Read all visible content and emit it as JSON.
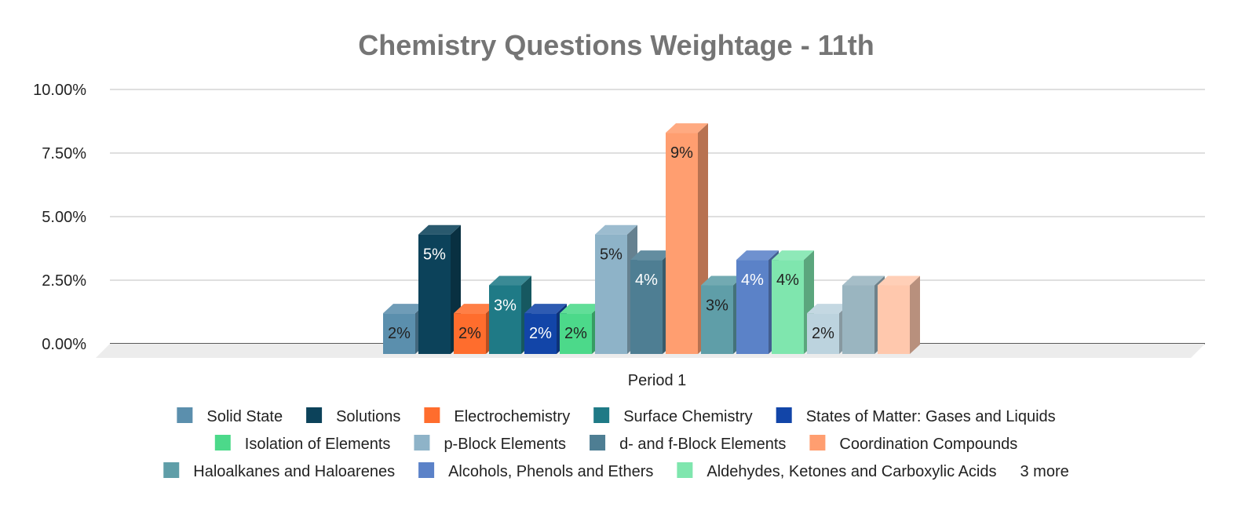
{
  "chart_data": {
    "type": "bar",
    "title": "Chemistry Questions Weightage - 11th",
    "categories": [
      "Period 1"
    ],
    "ylim": [
      0,
      10
    ],
    "yticks": [
      "0.00%",
      "2.50%",
      "5.00%",
      "7.50%",
      "10.00%"
    ],
    "ytick_values": [
      0,
      2.5,
      5,
      7.5,
      10
    ],
    "grid": true,
    "legend_position": "bottom",
    "legend_more": "3 more",
    "series": [
      {
        "name": "Solid State",
        "value": 1.6,
        "label": "2%",
        "color": "#5b8fad",
        "label_color": "#222222"
      },
      {
        "name": "Solutions",
        "value": 4.7,
        "label": "5%",
        "color": "#0c425a",
        "label_color": "#ffffff"
      },
      {
        "name": "Electrochemistry",
        "value": 1.6,
        "label": "2%",
        "color": "#ff6d2d",
        "label_color": "#222222"
      },
      {
        "name": "Surface Chemistry",
        "value": 2.7,
        "label": "3%",
        "color": "#1f7a86",
        "label_color": "#ffffff"
      },
      {
        "name": "States of Matter: Gases and Liquids",
        "value": 1.6,
        "label": "2%",
        "color": "#1245a8",
        "label_color": "#ffffff"
      },
      {
        "name": "Isolation of Elements",
        "value": 1.6,
        "label": "2%",
        "color": "#4cd98a",
        "label_color": "#222222"
      },
      {
        "name": "p-Block Elements",
        "value": 4.7,
        "label": "5%",
        "color": "#8eb3c8",
        "label_color": "#222222"
      },
      {
        "name": "d- and f-Block Elements",
        "value": 3.7,
        "label": "4%",
        "color": "#4e7e93",
        "label_color": "#ffffff"
      },
      {
        "name": "Coordination Compounds",
        "value": 8.7,
        "label": "9%",
        "color": "#ff9e70",
        "label_color": "#222222"
      },
      {
        "name": "Haloalkanes and Haloarenes",
        "value": 2.7,
        "label": "3%",
        "color": "#5f9ea8",
        "label_color": "#222222"
      },
      {
        "name": "Alcohols, Phenols and Ethers",
        "value": 3.7,
        "label": "4%",
        "color": "#5b82c8",
        "label_color": "#ffffff"
      },
      {
        "name": "Aldehydes, Ketones and Carboxylic Acids",
        "value": 3.7,
        "label": "4%",
        "color": "#7fe6ae",
        "label_color": "#222222"
      },
      {
        "value": 1.6,
        "label": "2%",
        "color": "#bcd3de",
        "label_color": "#222222"
      },
      {
        "value": 2.7,
        "label": "",
        "color": "#9ab5c0",
        "label_color": "#222222"
      },
      {
        "value": 2.7,
        "label": "",
        "color": "#ffc8ad",
        "label_color": "#222222"
      }
    ]
  }
}
